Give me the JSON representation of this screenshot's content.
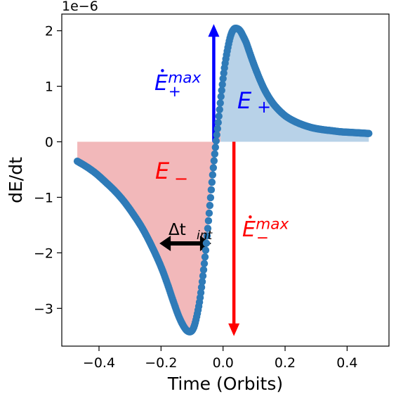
{
  "chart_data": {
    "type": "scatter",
    "xlabel": "Time (Orbits)",
    "ylabel": "dE/dt",
    "y_offset_text": "1e−6",
    "xlim": [
      -0.52,
      0.535
    ],
    "ylim": [
      -3.68,
      2.3
    ],
    "x_ticks": [
      -0.4,
      -0.2,
      0.0,
      0.2,
      0.4
    ],
    "x_tick_labels": [
      "−0.4",
      "−0.2",
      "0.0",
      "0.2",
      "0.4"
    ],
    "y_ticks": [
      -3,
      -2,
      -1,
      0,
      1,
      2
    ],
    "y_tick_labels": [
      "−3",
      "−2",
      "−1",
      "0",
      "1",
      "2"
    ],
    "grid": false,
    "series_color": "#2f7bb8",
    "negative_fill_color": "#f2b8ba",
    "positive_fill_color": "#b8d2e8",
    "series": [
      {
        "x": [
          -0.47,
          -0.44,
          -0.41,
          -0.38,
          -0.35,
          -0.32,
          -0.29,
          -0.26,
          -0.23,
          -0.2,
          -0.18,
          -0.16,
          -0.14,
          -0.12,
          -0.105,
          -0.095,
          -0.085,
          -0.075,
          -0.065,
          -0.055,
          -0.045,
          -0.035,
          -0.025,
          -0.015,
          -0.005,
          0.005,
          0.015,
          0.025,
          0.035,
          0.045,
          0.055,
          0.065,
          0.075,
          0.085,
          0.095,
          0.11,
          0.13,
          0.15,
          0.17,
          0.2,
          0.23,
          0.26,
          0.29,
          0.32,
          0.35,
          0.38,
          0.41,
          0.44,
          0.47
        ],
        "y": [
          -0.35,
          -0.45,
          -0.57,
          -0.72,
          -0.88,
          -1.07,
          -1.3,
          -1.56,
          -1.88,
          -2.25,
          -2.55,
          -2.88,
          -3.18,
          -3.38,
          -3.42,
          -3.35,
          -3.15,
          -2.85,
          -2.42,
          -1.9,
          -1.3,
          -0.68,
          -0.12,
          0.38,
          0.9,
          1.35,
          1.68,
          1.92,
          2.03,
          2.04,
          2.0,
          1.9,
          1.78,
          1.62,
          1.46,
          1.24,
          0.98,
          0.78,
          0.63,
          0.47,
          0.37,
          0.3,
          0.25,
          0.22,
          0.2,
          0.18,
          0.17,
          0.16,
          0.15
        ]
      }
    ],
    "fill_negative_x_range": [
      -0.47,
      -0.008
    ],
    "fill_positive_x_range": [
      -0.008,
      0.47
    ],
    "annotations": {
      "e_minus": "E",
      "e_minus_sub": "−",
      "e_plus": "E",
      "e_plus_sub": "+",
      "edot_plus_max": "E",
      "edot_plus_max_sup": "max",
      "edot_plus_max_sub": "+",
      "edot_minus_max": "E",
      "edot_minus_max_sup": "max",
      "edot_minus_max_sub": "−",
      "delta_t": "Δt",
      "delta_t_sub": "int",
      "up_arrow_x": -0.03,
      "up_arrow_y_range": [
        0.0,
        2.12
      ],
      "down_arrow_x": 0.035,
      "down_arrow_y_range": [
        0.0,
        -3.5
      ],
      "double_arrow_x_range": [
        -0.205,
        -0.038
      ],
      "double_arrow_y": -1.83,
      "e_plus_color": "#0000ff",
      "e_minus_color": "#ff0000"
    }
  }
}
